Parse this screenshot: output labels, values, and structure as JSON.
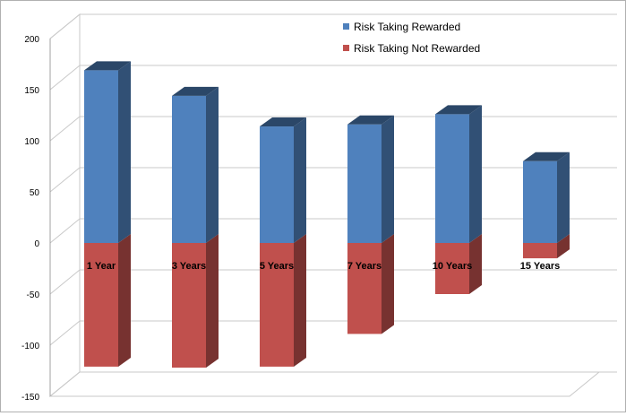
{
  "chart_data": {
    "type": "bar",
    "stacked": true,
    "three_d": true,
    "categories": [
      "1 Year",
      "3 Years",
      "5 Years",
      "7 Years",
      "10 Years",
      "15 Years"
    ],
    "series": [
      {
        "name": "Risk Taking Rewarded",
        "color": "#4f81bd",
        "values": [
          169,
          144,
          114,
          116,
          126,
          80
        ]
      },
      {
        "name": "Risk Taking Not Rewarded",
        "color": "#c0504d",
        "values": [
          -121,
          -122,
          -121,
          -89,
          -50,
          -15
        ]
      }
    ],
    "y_ticks": [
      "200",
      "150",
      "100",
      "50",
      "0",
      "-50",
      "-100",
      "-150"
    ],
    "ylim": [
      -150,
      200
    ],
    "grid": true,
    "legend_position": "top-right",
    "title": "",
    "xlabel": "",
    "ylabel": ""
  }
}
